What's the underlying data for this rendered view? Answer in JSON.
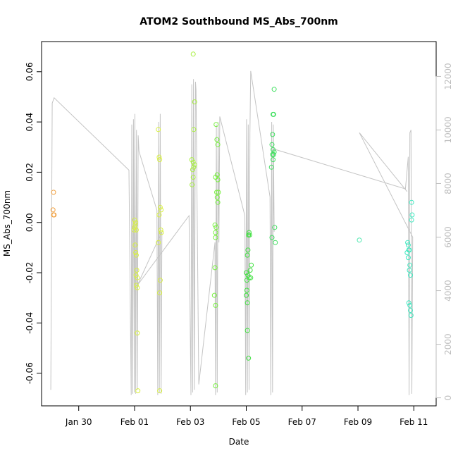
{
  "chart_data": {
    "type": "scatter",
    "title": "ATOM2 Southbound MS_Abs_700nm",
    "xlabel": "Date",
    "ylabel": "MS_Abs_700nm",
    "x_ticks": [
      {
        "day": 2,
        "label": "Jan 30"
      },
      {
        "day": 4,
        "label": "Feb 01"
      },
      {
        "day": 6,
        "label": "Feb 03"
      },
      {
        "day": 8,
        "label": "Feb 05"
      },
      {
        "day": 10,
        "label": "Feb 07"
      },
      {
        "day": 12,
        "label": "Feb 09"
      },
      {
        "day": 14,
        "label": "Feb 11"
      }
    ],
    "xlim_days": [
      0.67,
      14.8
    ],
    "y_ticks": [
      "-0.06",
      "-0.04",
      "-0.02",
      "0.00",
      "0.02",
      "0.04",
      "0.06"
    ],
    "ylim": [
      -0.073,
      0.072
    ],
    "y2_ticks": [
      "0",
      "2000",
      "4000",
      "6000",
      "8000",
      "10000",
      "12000"
    ],
    "y2lim": [
      -300,
      13300
    ],
    "scatter_points": [
      {
        "x": 1.1,
        "y": 0.012,
        "color": "#f0a040"
      },
      {
        "x": 1.08,
        "y": 0.005,
        "color": "#f0a040"
      },
      {
        "x": 1.1,
        "y": 0.003,
        "color": "#f0a040"
      },
      {
        "x": 1.12,
        "y": 0.003,
        "color": "#f0a040"
      },
      {
        "x": 3.98,
        "y": -0.003,
        "color": "#d8f040"
      },
      {
        "x": 4.0,
        "y": -0.002,
        "color": "#d8f040"
      },
      {
        "x": 4.02,
        "y": -0.001,
        "color": "#d8f040"
      },
      {
        "x": 4.04,
        "y": 0.0,
        "color": "#d8f040"
      },
      {
        "x": 4.0,
        "y": 0.001,
        "color": "#d8f040"
      },
      {
        "x": 4.06,
        "y": -0.003,
        "color": "#d8f040"
      },
      {
        "x": 4.02,
        "y": -0.009,
        "color": "#d8f040"
      },
      {
        "x": 4.04,
        "y": -0.012,
        "color": "#d8f040"
      },
      {
        "x": 4.06,
        "y": -0.013,
        "color": "#d8f040"
      },
      {
        "x": 4.08,
        "y": -0.019,
        "color": "#d8f040"
      },
      {
        "x": 4.05,
        "y": -0.021,
        "color": "#d8f040"
      },
      {
        "x": 4.1,
        "y": -0.022,
        "color": "#d8f040"
      },
      {
        "x": 4.06,
        "y": -0.025,
        "color": "#d8f040"
      },
      {
        "x": 4.1,
        "y": -0.026,
        "color": "#d8f040"
      },
      {
        "x": 4.1,
        "y": -0.044,
        "color": "#d8f040"
      },
      {
        "x": 4.12,
        "y": -0.067,
        "color": "#d8f040"
      },
      {
        "x": 4.85,
        "y": 0.037,
        "color": "#d8f040"
      },
      {
        "x": 4.88,
        "y": 0.026,
        "color": "#d8f040"
      },
      {
        "x": 4.9,
        "y": 0.025,
        "color": "#d8f040"
      },
      {
        "x": 4.92,
        "y": 0.006,
        "color": "#d8f040"
      },
      {
        "x": 4.95,
        "y": 0.005,
        "color": "#d8f040"
      },
      {
        "x": 4.88,
        "y": 0.003,
        "color": "#d8f040"
      },
      {
        "x": 4.94,
        "y": -0.003,
        "color": "#d8f040"
      },
      {
        "x": 4.96,
        "y": -0.004,
        "color": "#d8f040"
      },
      {
        "x": 4.85,
        "y": -0.008,
        "color": "#d8f040"
      },
      {
        "x": 4.92,
        "y": -0.023,
        "color": "#d8f040"
      },
      {
        "x": 4.9,
        "y": -0.028,
        "color": "#d8f040"
      },
      {
        "x": 4.9,
        "y": -0.067,
        "color": "#d8f040"
      },
      {
        "x": 6.1,
        "y": 0.067,
        "color": "#a8f040"
      },
      {
        "x": 6.15,
        "y": 0.048,
        "color": "#a8f040"
      },
      {
        "x": 6.12,
        "y": 0.037,
        "color": "#a8f040"
      },
      {
        "x": 6.05,
        "y": 0.025,
        "color": "#a8f040"
      },
      {
        "x": 6.1,
        "y": 0.024,
        "color": "#a8f040"
      },
      {
        "x": 6.15,
        "y": 0.023,
        "color": "#a8f040"
      },
      {
        "x": 6.12,
        "y": 0.022,
        "color": "#a8f040"
      },
      {
        "x": 6.08,
        "y": 0.021,
        "color": "#a8f040"
      },
      {
        "x": 6.1,
        "y": 0.018,
        "color": "#a8f040"
      },
      {
        "x": 6.06,
        "y": 0.015,
        "color": "#a8f040"
      },
      {
        "x": 6.92,
        "y": 0.039,
        "color": "#78f040"
      },
      {
        "x": 6.95,
        "y": 0.033,
        "color": "#78f040"
      },
      {
        "x": 6.98,
        "y": 0.031,
        "color": "#78f040"
      },
      {
        "x": 6.9,
        "y": 0.018,
        "color": "#78f040"
      },
      {
        "x": 6.96,
        "y": 0.019,
        "color": "#78f040"
      },
      {
        "x": 6.98,
        "y": 0.017,
        "color": "#78f040"
      },
      {
        "x": 6.94,
        "y": 0.012,
        "color": "#78f040"
      },
      {
        "x": 7.0,
        "y": 0.012,
        "color": "#78f040"
      },
      {
        "x": 6.96,
        "y": 0.01,
        "color": "#78f040"
      },
      {
        "x": 6.98,
        "y": 0.008,
        "color": "#78f040"
      },
      {
        "x": 6.88,
        "y": -0.001,
        "color": "#78f040"
      },
      {
        "x": 6.92,
        "y": -0.002,
        "color": "#78f040"
      },
      {
        "x": 6.9,
        "y": -0.004,
        "color": "#78f040"
      },
      {
        "x": 6.9,
        "y": -0.006,
        "color": "#78f040"
      },
      {
        "x": 6.88,
        "y": -0.018,
        "color": "#78f040"
      },
      {
        "x": 6.86,
        "y": -0.029,
        "color": "#78f040"
      },
      {
        "x": 6.9,
        "y": -0.033,
        "color": "#78f040"
      },
      {
        "x": 6.9,
        "y": -0.065,
        "color": "#78f040"
      },
      {
        "x": 8.1,
        "y": -0.004,
        "color": "#40e040"
      },
      {
        "x": 8.12,
        "y": -0.005,
        "color": "#40e040"
      },
      {
        "x": 8.08,
        "y": -0.005,
        "color": "#40e040"
      },
      {
        "x": 8.06,
        "y": -0.011,
        "color": "#40e040"
      },
      {
        "x": 8.04,
        "y": -0.013,
        "color": "#40e040"
      },
      {
        "x": 8.18,
        "y": -0.017,
        "color": "#40e040"
      },
      {
        "x": 8.14,
        "y": -0.019,
        "color": "#40e040"
      },
      {
        "x": 8.0,
        "y": -0.02,
        "color": "#40e040"
      },
      {
        "x": 8.06,
        "y": -0.021,
        "color": "#40e040"
      },
      {
        "x": 8.16,
        "y": -0.022,
        "color": "#40e040"
      },
      {
        "x": 8.1,
        "y": -0.022,
        "color": "#40e040"
      },
      {
        "x": 8.02,
        "y": -0.023,
        "color": "#40e040"
      },
      {
        "x": 8.02,
        "y": -0.027,
        "color": "#40e040"
      },
      {
        "x": 8.0,
        "y": -0.029,
        "color": "#40e040"
      },
      {
        "x": 8.04,
        "y": -0.032,
        "color": "#40e040"
      },
      {
        "x": 8.04,
        "y": -0.043,
        "color": "#40e040"
      },
      {
        "x": 8.08,
        "y": -0.054,
        "color": "#40e040"
      },
      {
        "x": 9.0,
        "y": 0.053,
        "color": "#40e060"
      },
      {
        "x": 8.96,
        "y": 0.043,
        "color": "#40e060"
      },
      {
        "x": 8.98,
        "y": 0.043,
        "color": "#40e060"
      },
      {
        "x": 8.94,
        "y": 0.035,
        "color": "#40e060"
      },
      {
        "x": 8.92,
        "y": 0.031,
        "color": "#40e060"
      },
      {
        "x": 8.96,
        "y": 0.029,
        "color": "#40e060"
      },
      {
        "x": 9.0,
        "y": 0.028,
        "color": "#40e060"
      },
      {
        "x": 8.94,
        "y": 0.027,
        "color": "#40e060"
      },
      {
        "x": 8.98,
        "y": 0.027,
        "color": "#40e060"
      },
      {
        "x": 8.96,
        "y": 0.025,
        "color": "#40e060"
      },
      {
        "x": 8.9,
        "y": 0.022,
        "color": "#40e060"
      },
      {
        "x": 9.02,
        "y": -0.002,
        "color": "#40e060"
      },
      {
        "x": 8.92,
        "y": -0.006,
        "color": "#40e060"
      },
      {
        "x": 9.04,
        "y": -0.008,
        "color": "#40e060"
      },
      {
        "x": 12.05,
        "y": -0.007,
        "color": "#50e8b0"
      },
      {
        "x": 13.78,
        "y": -0.008,
        "color": "#40e8c0"
      },
      {
        "x": 13.8,
        "y": -0.009,
        "color": "#40e8c0"
      },
      {
        "x": 13.82,
        "y": -0.011,
        "color": "#40e8c0"
      },
      {
        "x": 13.76,
        "y": -0.012,
        "color": "#40e8c0"
      },
      {
        "x": 13.84,
        "y": -0.011,
        "color": "#40e8c0"
      },
      {
        "x": 13.8,
        "y": -0.014,
        "color": "#40e8c0"
      },
      {
        "x": 13.86,
        "y": -0.017,
        "color": "#40e8c0"
      },
      {
        "x": 13.84,
        "y": -0.019,
        "color": "#40e8c0"
      },
      {
        "x": 13.88,
        "y": -0.021,
        "color": "#40e8c0"
      },
      {
        "x": 13.82,
        "y": -0.032,
        "color": "#40e8c0"
      },
      {
        "x": 13.86,
        "y": -0.033,
        "color": "#40e8c0"
      },
      {
        "x": 13.88,
        "y": -0.035,
        "color": "#40e8c0"
      },
      {
        "x": 13.9,
        "y": -0.037,
        "color": "#40e8c0"
      },
      {
        "x": 13.92,
        "y": 0.008,
        "color": "#40e8c0"
      },
      {
        "x": 13.94,
        "y": 0.003,
        "color": "#40e8c0"
      },
      {
        "x": 13.92,
        "y": 0.001,
        "color": "#40e8c0"
      }
    ],
    "altitude_line": [
      [
        1.0,
        300
      ],
      [
        1.05,
        11000
      ],
      [
        1.12,
        11200
      ],
      [
        3.8,
        8500
      ],
      [
        3.88,
        100
      ],
      [
        3.9,
        10200
      ],
      [
        3.93,
        150
      ],
      [
        3.96,
        10400
      ],
      [
        3.99,
        200
      ],
      [
        4.01,
        10600
      ],
      [
        4.04,
        150
      ],
      [
        4.07,
        10000
      ],
      [
        4.1,
        300
      ],
      [
        4.13,
        9800
      ],
      [
        4.16,
        9200
      ],
      [
        4.8,
        7000
      ],
      [
        4.83,
        100
      ],
      [
        4.86,
        10300
      ],
      [
        4.89,
        200
      ],
      [
        4.92,
        10600
      ],
      [
        4.95,
        150
      ],
      [
        4.98,
        6200
      ],
      [
        4.1,
        4200
      ],
      [
        5.95,
        6800
      ],
      [
        6.02,
        100
      ],
      [
        6.05,
        11700
      ],
      [
        6.08,
        200
      ],
      [
        6.11,
        11900
      ],
      [
        6.14,
        300
      ],
      [
        6.18,
        11800
      ],
      [
        6.2,
        11500
      ],
      [
        6.3,
        500
      ],
      [
        6.88,
        5800
      ],
      [
        6.9,
        100
      ],
      [
        6.93,
        10200
      ],
      [
        6.96,
        200
      ],
      [
        6.99,
        10300
      ],
      [
        7.02,
        5800
      ],
      [
        7.05,
        10500
      ],
      [
        7.95,
        6800
      ],
      [
        7.98,
        100
      ],
      [
        8.01,
        10400
      ],
      [
        8.04,
        200
      ],
      [
        8.07,
        10200
      ],
      [
        8.1,
        300
      ],
      [
        8.13,
        9900
      ],
      [
        8.16,
        12200
      ],
      [
        8.85,
        7500
      ],
      [
        8.88,
        100
      ],
      [
        8.91,
        10300
      ],
      [
        8.94,
        200
      ],
      [
        8.97,
        10200
      ],
      [
        9.0,
        6200
      ],
      [
        8.95,
        9300
      ],
      [
        13.7,
        7800
      ],
      [
        13.8,
        9000
      ],
      [
        13.83,
        100
      ],
      [
        13.86,
        9900
      ],
      [
        13.9,
        10000
      ],
      [
        13.93,
        150
      ],
      [
        13.96,
        6000
      ],
      [
        12.05,
        9900
      ],
      [
        13.76,
        7700
      ]
    ]
  }
}
